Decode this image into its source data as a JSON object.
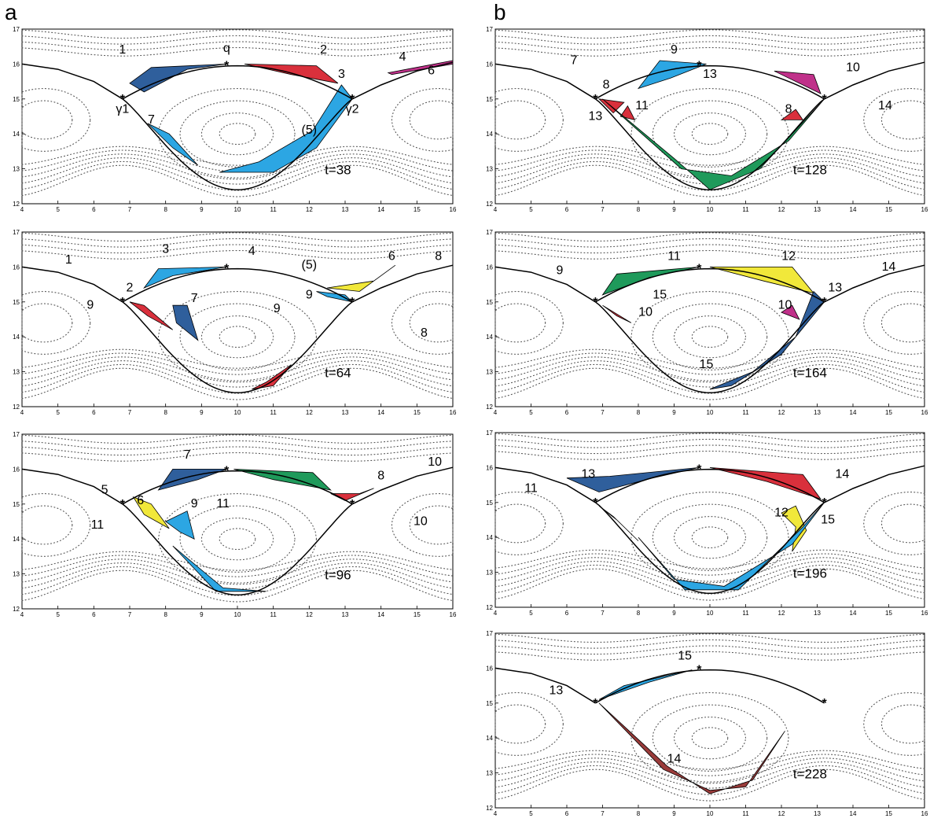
{
  "columns": {
    "a": "a",
    "b": "b"
  },
  "axes": {
    "x_ticks": [
      4,
      5,
      6,
      7,
      8,
      9,
      10,
      11,
      12,
      13,
      14,
      15,
      16
    ],
    "y_ticks": [
      12,
      13,
      14,
      15,
      16,
      17
    ]
  },
  "colors": {
    "dark_blue": "#2f5f9c",
    "light_blue": "#2ca6e3",
    "red": "#d9303c",
    "green": "#1f9a5b",
    "yellow": "#f1e83a",
    "magenta": "#c0318a",
    "brown": "#9a3b3a",
    "curve": "#000000",
    "dots": "#555555"
  },
  "panels": [
    {
      "id": "a1",
      "time": "t=38",
      "labels": [
        {
          "text": "1",
          "x": 6.8,
          "y": 16.3
        },
        {
          "text": "q",
          "x": 9.7,
          "y": 16.35
        },
        {
          "text": "2",
          "x": 12.4,
          "y": 16.3
        },
        {
          "text": "4",
          "x": 14.6,
          "y": 16.1
        },
        {
          "text": "6",
          "x": 15.4,
          "y": 15.7
        },
        {
          "text": "3",
          "x": 12.9,
          "y": 15.6
        },
        {
          "text": "γ1",
          "x": 6.8,
          "y": 14.6
        },
        {
          "text": "γ2",
          "x": 13.2,
          "y": 14.6
        },
        {
          "text": "7",
          "x": 7.6,
          "y": 14.3
        },
        {
          "text": "(5)",
          "x": 12.0,
          "y": 14.0
        }
      ]
    },
    {
      "id": "a2",
      "time": "t=64",
      "labels": [
        {
          "text": "1",
          "x": 5.3,
          "y": 16.1
        },
        {
          "text": "3",
          "x": 8.0,
          "y": 16.4
        },
        {
          "text": "4",
          "x": 10.4,
          "y": 16.35
        },
        {
          "text": "(5)",
          "x": 12.0,
          "y": 15.95
        },
        {
          "text": "6",
          "x": 14.3,
          "y": 16.2
        },
        {
          "text": "8",
          "x": 15.6,
          "y": 16.2
        },
        {
          "text": "2",
          "x": 7.0,
          "y": 15.3
        },
        {
          "text": "9",
          "x": 5.9,
          "y": 14.8
        },
        {
          "text": "9",
          "x": 12.0,
          "y": 15.1
        },
        {
          "text": "7",
          "x": 8.8,
          "y": 15.0
        },
        {
          "text": "9",
          "x": 11.1,
          "y": 14.7
        },
        {
          "text": "8",
          "x": 15.2,
          "y": 14.0
        }
      ]
    },
    {
      "id": "a3",
      "time": "t=96",
      "labels": [
        {
          "text": "7",
          "x": 8.6,
          "y": 16.3
        },
        {
          "text": "10",
          "x": 15.5,
          "y": 16.1
        },
        {
          "text": "8",
          "x": 14.0,
          "y": 15.7
        },
        {
          "text": "5",
          "x": 6.3,
          "y": 15.3
        },
        {
          "text": "6",
          "x": 7.3,
          "y": 15.0
        },
        {
          "text": "9",
          "x": 8.8,
          "y": 14.9
        },
        {
          "text": "11",
          "x": 9.6,
          "y": 14.9
        },
        {
          "text": "11",
          "x": 6.1,
          "y": 14.3
        },
        {
          "text": "10",
          "x": 15.1,
          "y": 14.4
        }
      ]
    },
    {
      "id": "b1",
      "time": "t=128",
      "labels": [
        {
          "text": "7",
          "x": 6.2,
          "y": 16.0
        },
        {
          "text": "9",
          "x": 9.0,
          "y": 16.3
        },
        {
          "text": "13",
          "x": 10.0,
          "y": 15.6
        },
        {
          "text": "10",
          "x": 14.0,
          "y": 15.8
        },
        {
          "text": "8",
          "x": 7.1,
          "y": 15.3
        },
        {
          "text": "11",
          "x": 8.1,
          "y": 14.7
        },
        {
          "text": "8",
          "x": 12.2,
          "y": 14.6
        },
        {
          "text": "13",
          "x": 6.8,
          "y": 14.4
        },
        {
          "text": "14",
          "x": 14.9,
          "y": 14.7
        }
      ]
    },
    {
      "id": "b2",
      "time": "t=164",
      "labels": [
        {
          "text": "9",
          "x": 5.8,
          "y": 15.8
        },
        {
          "text": "11",
          "x": 9.0,
          "y": 16.2
        },
        {
          "text": "12",
          "x": 12.2,
          "y": 16.2
        },
        {
          "text": "14",
          "x": 15.0,
          "y": 15.9
        },
        {
          "text": "13",
          "x": 13.5,
          "y": 15.3
        },
        {
          "text": "15",
          "x": 8.6,
          "y": 15.1
        },
        {
          "text": "10",
          "x": 12.1,
          "y": 14.8
        },
        {
          "text": "10",
          "x": 8.2,
          "y": 14.6
        },
        {
          "text": "15",
          "x": 9.9,
          "y": 13.1
        }
      ]
    },
    {
      "id": "b3",
      "time": "t=196",
      "labels": [
        {
          "text": "11",
          "x": 5.0,
          "y": 15.3
        },
        {
          "text": "13",
          "x": 6.6,
          "y": 15.7
        },
        {
          "text": "14",
          "x": 13.7,
          "y": 15.7
        },
        {
          "text": "12",
          "x": 12.0,
          "y": 14.6
        },
        {
          "text": "15",
          "x": 13.3,
          "y": 14.4
        }
      ]
    },
    {
      "id": "b4",
      "time": "t=228",
      "labels": [
        {
          "text": "15",
          "x": 9.3,
          "y": 16.25
        },
        {
          "text": "13",
          "x": 5.7,
          "y": 15.25
        },
        {
          "text": "14",
          "x": 9.0,
          "y": 13.3
        }
      ]
    }
  ]
}
